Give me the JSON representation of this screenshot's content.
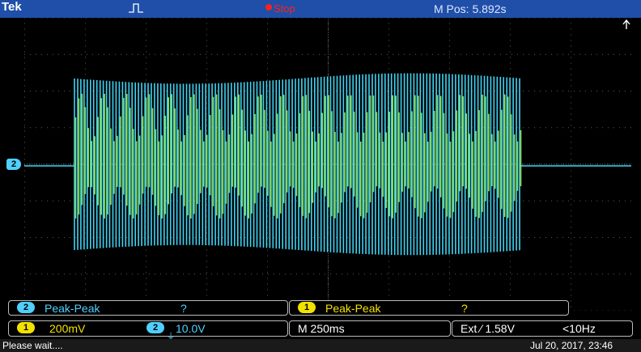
{
  "header": {
    "brand": "Tek",
    "acquisition_state": "Stop",
    "position_readout": "M Pos: 5.892s"
  },
  "screen": {
    "channel_marker": "2",
    "ch1_color": "#9cf55a",
    "ch2_color": "#3fd2f2"
  },
  "measurements": [
    {
      "channel": "2",
      "type": "Peak-Peak",
      "value": "?"
    },
    {
      "channel": "1",
      "type": "Peak-Peak",
      "value": "?"
    }
  ],
  "settings": {
    "ch1_badge": "1",
    "ch1_scale": "200mV",
    "ch2_badge": "2",
    "ch2_scale": "10.0V",
    "timebase": "M 250ms",
    "trigger": "Ext ⁄ 1.58V",
    "trigger_freq": "<10Hz"
  },
  "status": {
    "message": "Please wait....",
    "datetime": "Jul 20, 2017, 23:46"
  }
}
